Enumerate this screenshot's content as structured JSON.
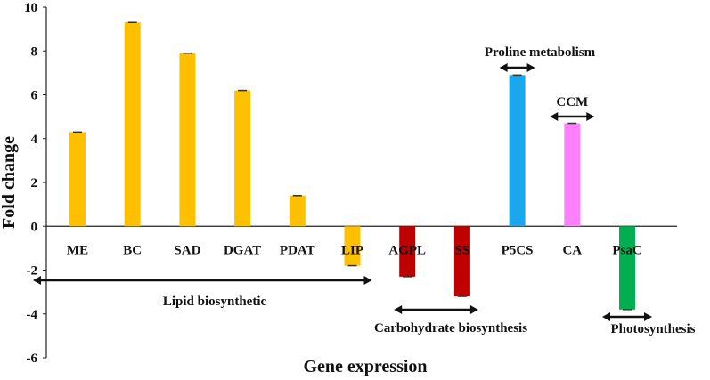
{
  "chart_data": {
    "type": "bar",
    "xlabel": "Gene expression",
    "ylabel": "Fold change",
    "ylim": [
      -6,
      10
    ],
    "yticks": [
      -6,
      -4,
      -2,
      0,
      2,
      4,
      6,
      8,
      10
    ],
    "grid": false,
    "categories": [
      "ME",
      "BC",
      "SAD",
      "DGAT",
      "PDAT",
      "LIP",
      "AGPL",
      "SS",
      "P5CS",
      "CA",
      "PsaC"
    ],
    "values": [
      4.3,
      9.3,
      7.9,
      6.2,
      1.4,
      -1.8,
      -2.3,
      -3.2,
      6.9,
      4.7,
      -3.8
    ],
    "colors": [
      "#FFC000",
      "#FFC000",
      "#FFC000",
      "#FFC000",
      "#FFC000",
      "#FFC000",
      "#C00000",
      "#C00000",
      "#1AA7EC",
      "#FF80FF",
      "#00B050"
    ],
    "groups": [
      {
        "label": "Lipid biosynthetic",
        "from": "ME",
        "to": "LIP",
        "side": "below"
      },
      {
        "label": "Carbohydrate biosynthesis",
        "from": "AGPL",
        "to": "SS",
        "side": "below"
      },
      {
        "label": "Proline metabolism",
        "from": "P5CS",
        "to": "P5CS",
        "side": "above"
      },
      {
        "label": "CCM",
        "from": "CA",
        "to": "CA",
        "side": "above"
      },
      {
        "label": "Photosynthesis",
        "from": "PsaC",
        "to": "PsaC",
        "side": "below"
      }
    ]
  }
}
